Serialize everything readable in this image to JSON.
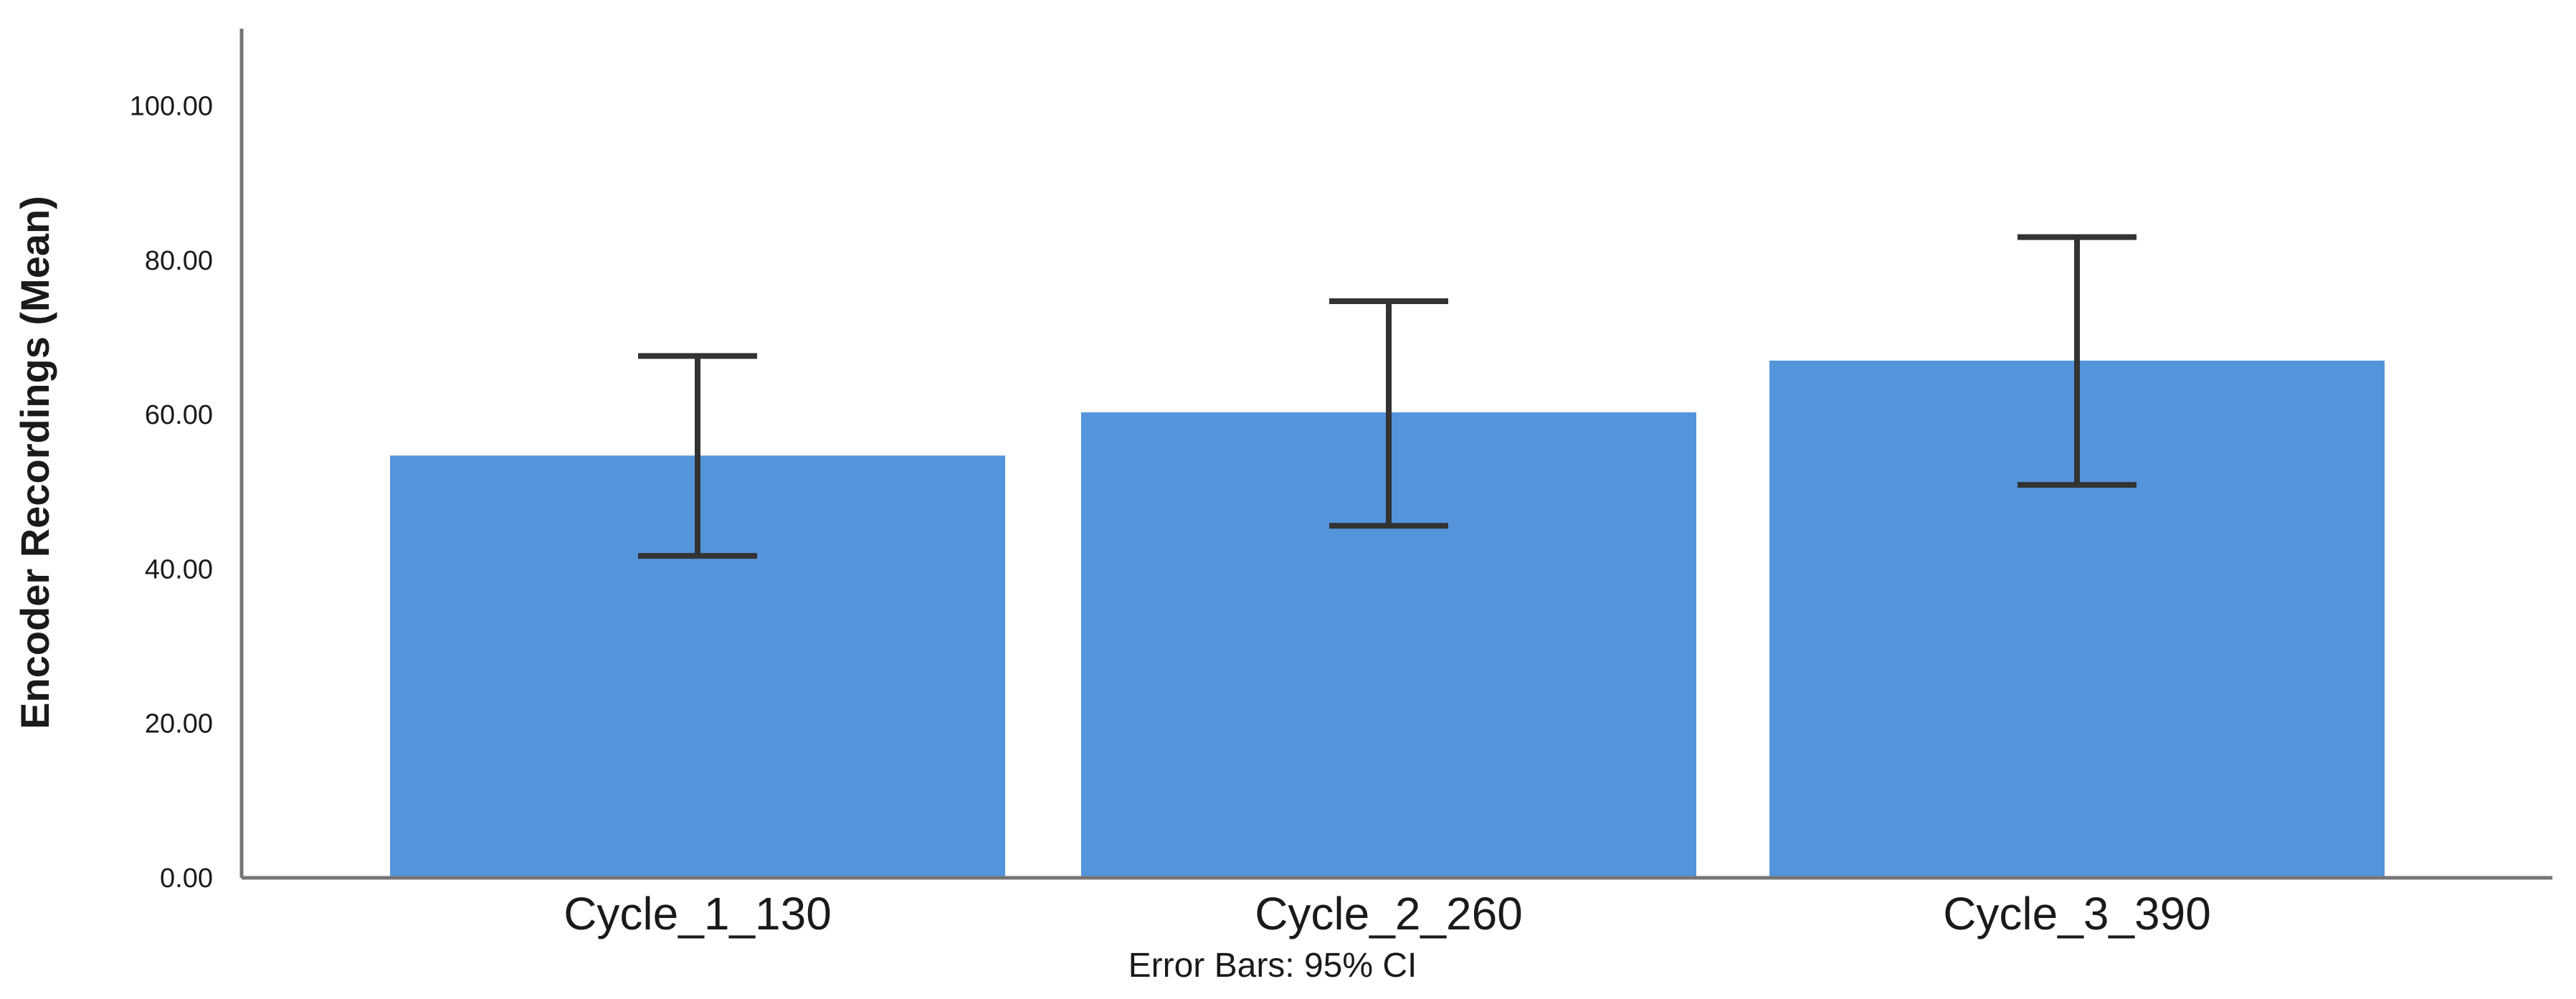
{
  "chart_data": {
    "type": "bar",
    "title": "",
    "xlabel": "",
    "ylabel": "Encoder Recordings (Mean)",
    "footnote": "Error Bars: 95% CI",
    "categories": [
      "Cycle_1_130",
      "Cycle_2_260",
      "Cycle_3_390"
    ],
    "values": [
      54.7,
      60.3,
      67.0
    ],
    "error_bars": {
      "kind": "95% CI",
      "upper": [
        67.6,
        74.7,
        83.0
      ],
      "lower": [
        41.7,
        45.6,
        50.9
      ]
    },
    "yticks": [
      0,
      20,
      40,
      60,
      80,
      100
    ],
    "ytick_labels": [
      "0.00",
      "20.00",
      "40.00",
      "60.00",
      "80.00",
      "100.00"
    ],
    "ylim": [
      0,
      110
    ],
    "grid": false,
    "legend": null,
    "colors": {
      "bar_fill": "#5494DB",
      "error_bar": "#333333",
      "axis_line": "#757575",
      "label_text": "#1a1a1a",
      "background": "#ffffff"
    }
  }
}
